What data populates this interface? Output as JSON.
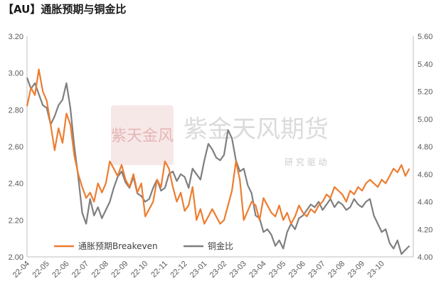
{
  "title": "【AU】通胀预期与铜金比",
  "watermark": {
    "name": "紫金天风期货",
    "slogan": "研 究 驱 动",
    "logo_text": "紫天金风"
  },
  "colors": {
    "series_breakeven": "#ED7D31",
    "series_copper_gold": "#7F7F7F",
    "axis": "#595959",
    "watermark": "#d9b3b3"
  },
  "chart_data": {
    "type": "line",
    "title": "",
    "grid": false,
    "legend_position": "bottom-left",
    "x_ticks": [
      "22-04",
      "22-05",
      "22-06",
      "22-07",
      "22-08",
      "22-09",
      "22-10",
      "22-11",
      "22-12",
      "23-01",
      "23-02",
      "23-03",
      "23-04",
      "23-05",
      "23-06",
      "23-07",
      "23-08",
      "23-09",
      "23-10"
    ],
    "y_left": {
      "min": 2.0,
      "max": 3.2,
      "ticks": [
        "2.00",
        "2.20",
        "2.40",
        "2.60",
        "2.80",
        "3.00",
        "3.20"
      ]
    },
    "y_right": {
      "min": 4.0,
      "max": 5.6,
      "ticks": [
        "4.00",
        "4.20",
        "4.40",
        "4.60",
        "4.80",
        "5.00",
        "5.20",
        "5.40",
        "5.60"
      ]
    },
    "series": [
      {
        "name": "通胀预期Breakeven",
        "axis": "left",
        "points": [
          [
            0.0,
            2.82
          ],
          [
            0.2,
            2.92
          ],
          [
            0.4,
            2.88
          ],
          [
            0.6,
            3.02
          ],
          [
            0.8,
            2.9
          ],
          [
            1.0,
            2.85
          ],
          [
            1.2,
            2.72
          ],
          [
            1.4,
            2.58
          ],
          [
            1.6,
            2.7
          ],
          [
            1.8,
            2.62
          ],
          [
            2.0,
            2.78
          ],
          [
            2.2,
            2.72
          ],
          [
            2.4,
            2.55
          ],
          [
            2.6,
            2.45
          ],
          [
            2.8,
            2.38
          ],
          [
            3.0,
            2.32
          ],
          [
            3.2,
            2.35
          ],
          [
            3.4,
            2.3
          ],
          [
            3.6,
            2.4
          ],
          [
            3.8,
            2.35
          ],
          [
            4.0,
            2.4
          ],
          [
            4.2,
            2.52
          ],
          [
            4.4,
            2.48
          ],
          [
            4.6,
            2.44
          ],
          [
            4.8,
            2.5
          ],
          [
            5.0,
            2.42
          ],
          [
            5.2,
            2.38
          ],
          [
            5.4,
            2.45
          ],
          [
            5.6,
            2.35
          ],
          [
            5.8,
            2.4
          ],
          [
            6.0,
            2.22
          ],
          [
            6.2,
            2.26
          ],
          [
            6.4,
            2.3
          ],
          [
            6.6,
            2.42
          ],
          [
            6.8,
            2.38
          ],
          [
            7.0,
            2.52
          ],
          [
            7.2,
            2.48
          ],
          [
            7.4,
            2.38
          ],
          [
            7.6,
            2.3
          ],
          [
            7.8,
            2.35
          ],
          [
            8.0,
            2.25
          ],
          [
            8.2,
            2.28
          ],
          [
            8.4,
            2.38
          ],
          [
            8.6,
            2.2
          ],
          [
            8.8,
            2.26
          ],
          [
            9.0,
            2.18
          ],
          [
            9.2,
            2.22
          ],
          [
            9.4,
            2.26
          ],
          [
            9.6,
            2.22
          ],
          [
            9.8,
            2.18
          ],
          [
            10.0,
            2.2
          ],
          [
            10.2,
            2.28
          ],
          [
            10.4,
            2.36
          ],
          [
            10.6,
            2.52
          ],
          [
            10.8,
            2.42
          ],
          [
            11.0,
            2.2
          ],
          [
            11.2,
            2.25
          ],
          [
            11.4,
            2.3
          ],
          [
            11.6,
            2.28
          ],
          [
            11.8,
            2.2
          ],
          [
            12.0,
            2.32
          ],
          [
            12.2,
            2.28
          ],
          [
            12.4,
            2.24
          ],
          [
            12.6,
            2.22
          ],
          [
            12.8,
            2.28
          ],
          [
            13.0,
            2.2
          ],
          [
            13.2,
            2.24
          ],
          [
            13.4,
            2.18
          ],
          [
            13.6,
            2.22
          ],
          [
            13.8,
            2.28
          ],
          [
            14.0,
            2.24
          ],
          [
            14.2,
            2.22
          ],
          [
            14.4,
            2.26
          ],
          [
            14.6,
            2.24
          ],
          [
            14.8,
            2.28
          ],
          [
            15.0,
            2.3
          ],
          [
            15.2,
            2.34
          ],
          [
            15.4,
            2.32
          ],
          [
            15.6,
            2.38
          ],
          [
            15.8,
            2.36
          ],
          [
            16.0,
            2.34
          ],
          [
            16.2,
            2.3
          ],
          [
            16.4,
            2.36
          ],
          [
            16.6,
            2.34
          ],
          [
            16.8,
            2.38
          ],
          [
            17.0,
            2.36
          ],
          [
            17.2,
            2.4
          ],
          [
            17.4,
            2.42
          ],
          [
            17.6,
            2.4
          ],
          [
            17.8,
            2.38
          ],
          [
            18.0,
            2.42
          ],
          [
            18.2,
            2.4
          ],
          [
            18.4,
            2.44
          ],
          [
            18.6,
            2.48
          ],
          [
            18.8,
            2.46
          ],
          [
            19.0,
            2.5
          ],
          [
            19.2,
            2.44
          ],
          [
            19.4,
            2.48
          ]
        ]
      },
      {
        "name": "铜金比",
        "axis": "right",
        "points": [
          [
            0.0,
            5.3
          ],
          [
            0.2,
            5.22
          ],
          [
            0.4,
            5.26
          ],
          [
            0.6,
            5.18
          ],
          [
            0.8,
            5.1
          ],
          [
            1.0,
            5.08
          ],
          [
            1.2,
            4.96
          ],
          [
            1.4,
            5.02
          ],
          [
            1.6,
            5.1
          ],
          [
            1.8,
            5.14
          ],
          [
            2.0,
            5.26
          ],
          [
            2.2,
            5.08
          ],
          [
            2.4,
            4.8
          ],
          [
            2.6,
            4.58
          ],
          [
            2.8,
            4.32
          ],
          [
            3.0,
            4.24
          ],
          [
            3.2,
            4.42
          ],
          [
            3.4,
            4.3
          ],
          [
            3.6,
            4.36
          ],
          [
            3.8,
            4.28
          ],
          [
            4.0,
            4.34
          ],
          [
            4.2,
            4.4
          ],
          [
            4.4,
            4.5
          ],
          [
            4.6,
            4.58
          ],
          [
            4.8,
            4.62
          ],
          [
            5.0,
            4.54
          ],
          [
            5.2,
            4.5
          ],
          [
            5.4,
            4.58
          ],
          [
            5.6,
            4.46
          ],
          [
            5.8,
            4.44
          ],
          [
            6.0,
            4.4
          ],
          [
            6.2,
            4.42
          ],
          [
            6.4,
            4.5
          ],
          [
            6.6,
            4.56
          ],
          [
            6.8,
            4.48
          ],
          [
            7.0,
            4.5
          ],
          [
            7.2,
            4.6
          ],
          [
            7.4,
            4.62
          ],
          [
            7.6,
            4.55
          ],
          [
            7.8,
            4.6
          ],
          [
            8.0,
            4.58
          ],
          [
            8.2,
            4.5
          ],
          [
            8.4,
            4.64
          ],
          [
            8.6,
            4.6
          ],
          [
            8.8,
            4.56
          ],
          [
            9.0,
            4.7
          ],
          [
            9.2,
            4.82
          ],
          [
            9.4,
            4.78
          ],
          [
            9.6,
            4.72
          ],
          [
            9.8,
            4.7
          ],
          [
            10.0,
            4.74
          ],
          [
            10.2,
            4.92
          ],
          [
            10.4,
            4.86
          ],
          [
            10.6,
            4.7
          ],
          [
            10.8,
            4.62
          ],
          [
            11.0,
            4.64
          ],
          [
            11.2,
            4.52
          ],
          [
            11.4,
            4.46
          ],
          [
            11.6,
            4.3
          ],
          [
            11.8,
            4.28
          ],
          [
            12.0,
            4.18
          ],
          [
            12.2,
            4.2
          ],
          [
            12.4,
            4.16
          ],
          [
            12.6,
            4.08
          ],
          [
            12.8,
            4.12
          ],
          [
            13.0,
            4.06
          ],
          [
            13.2,
            4.18
          ],
          [
            13.4,
            4.24
          ],
          [
            13.6,
            4.2
          ],
          [
            13.8,
            4.28
          ],
          [
            14.0,
            4.3
          ],
          [
            14.2,
            4.34
          ],
          [
            14.4,
            4.38
          ],
          [
            14.6,
            4.36
          ],
          [
            14.8,
            4.4
          ],
          [
            15.0,
            4.34
          ],
          [
            15.2,
            4.38
          ],
          [
            15.4,
            4.42
          ],
          [
            15.6,
            4.36
          ],
          [
            15.8,
            4.4
          ],
          [
            16.0,
            4.38
          ],
          [
            16.2,
            4.34
          ],
          [
            16.4,
            4.36
          ],
          [
            16.6,
            4.42
          ],
          [
            16.8,
            4.38
          ],
          [
            17.0,
            4.36
          ],
          [
            17.2,
            4.4
          ],
          [
            17.4,
            4.42
          ],
          [
            17.6,
            4.3
          ],
          [
            17.8,
            4.24
          ],
          [
            18.0,
            4.18
          ],
          [
            18.2,
            4.2
          ],
          [
            18.4,
            4.1
          ],
          [
            18.6,
            4.06
          ],
          [
            18.8,
            4.12
          ],
          [
            19.0,
            4.02
          ],
          [
            19.2,
            4.05
          ],
          [
            19.4,
            4.08
          ]
        ]
      }
    ]
  }
}
